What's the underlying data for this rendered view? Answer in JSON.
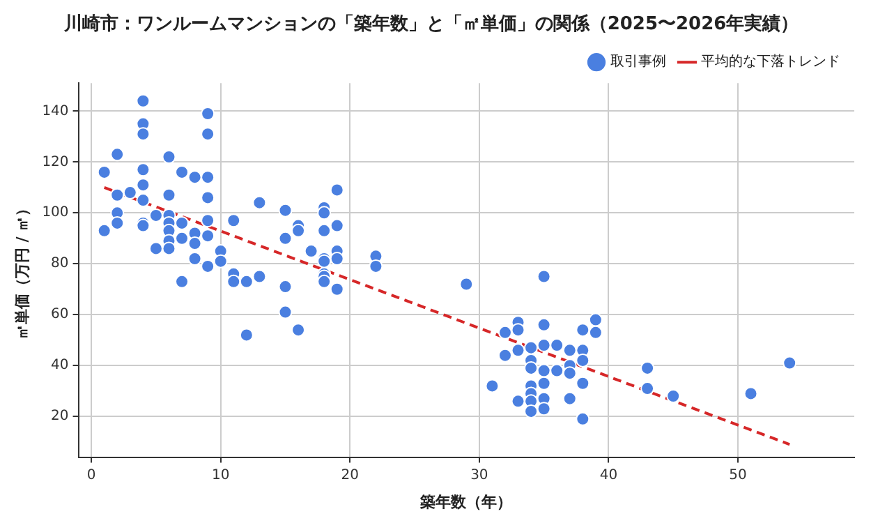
{
  "chart_data": {
    "type": "scatter",
    "title": "川崎市：ワンルームマンションの「築年数」と「㎡単価」の関係（2025〜2026年実績）",
    "xlabel": "築年数（年）",
    "ylabel": "㎡単価（万円 / ㎡）",
    "xlim": [
      -1,
      59
    ],
    "xticks": [
      0,
      10,
      20,
      30,
      40,
      50
    ],
    "ylim": [
      4,
      151
    ],
    "yticks": [
      20,
      40,
      60,
      80,
      100,
      120,
      140
    ],
    "grid": true,
    "legend": "top right",
    "series": [
      {
        "name": "取引事例",
        "type": "scatter",
        "color": "#4a7fe0",
        "marker": "circle",
        "x": [
          1,
          1,
          2,
          2,
          2,
          2,
          3,
          4,
          4,
          4,
          4,
          4,
          4,
          4,
          4,
          5,
          5,
          6,
          6,
          6,
          6,
          6,
          6,
          6,
          7,
          7,
          7,
          7,
          8,
          8,
          8,
          8,
          9,
          9,
          9,
          9,
          9,
          9,
          9,
          10,
          10,
          11,
          11,
          11,
          12,
          12,
          13,
          13,
          15,
          15,
          15,
          15,
          16,
          16,
          16,
          17,
          18,
          18,
          18,
          18,
          18,
          18,
          18,
          18,
          19,
          19,
          19,
          19,
          19,
          22,
          22,
          29,
          31,
          32,
          32,
          33,
          33,
          33,
          33,
          34,
          34,
          34,
          34,
          34,
          34,
          34,
          35,
          35,
          35,
          35,
          35,
          35,
          35,
          36,
          36,
          37,
          37,
          37,
          37,
          38,
          38,
          38,
          38,
          38,
          39,
          39,
          43,
          43,
          45,
          51,
          54
        ],
        "values": [
          116,
          93,
          123,
          107,
          100,
          96,
          108,
          144,
          135,
          131,
          117,
          111,
          105,
          96,
          95,
          99,
          86,
          122,
          107,
          99,
          96,
          93,
          89,
          86,
          116,
          96,
          90,
          73,
          114,
          92,
          88,
          82,
          139,
          131,
          114,
          106,
          97,
          91,
          79,
          85,
          81,
          97,
          76,
          73,
          73,
          52,
          104,
          75,
          101,
          90,
          71,
          61,
          95,
          93,
          54,
          85,
          102,
          100,
          93,
          82,
          81,
          76,
          75,
          73,
          109,
          95,
          85,
          82,
          70,
          83,
          79,
          72,
          32,
          53,
          44,
          57,
          54,
          46,
          26,
          47,
          42,
          39,
          32,
          29,
          26,
          22,
          75,
          56,
          48,
          38,
          33,
          27,
          23,
          48,
          38,
          46,
          40,
          37,
          27,
          54,
          46,
          42,
          33,
          19,
          58,
          53,
          39,
          31,
          28,
          29,
          41
        ]
      },
      {
        "name": "平均的な下落トレンド",
        "type": "line",
        "color": "#d62728",
        "line_style": "dashed",
        "marker": "none",
        "x": [
          1,
          54
        ],
        "values": [
          110,
          9
        ]
      }
    ]
  }
}
